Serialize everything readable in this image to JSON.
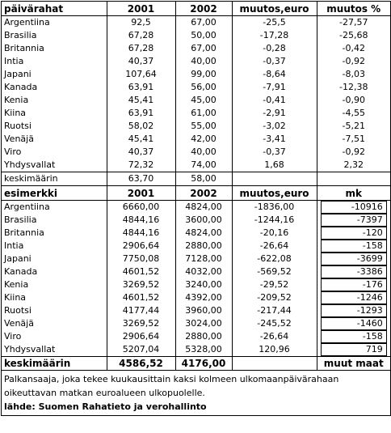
{
  "table1": {
    "header": [
      "päivärahat",
      "2001",
      "2002",
      "muutos,euro",
      "muutos %"
    ],
    "rows": [
      [
        "Argentiina",
        "92,5",
        "67,00",
        "-25,5",
        "-27,57"
      ],
      [
        "Brasilia",
        "67,28",
        "50,00",
        "-17,28",
        "-25,68"
      ],
      [
        "Britannia",
        "67,28",
        "67,00",
        "-0,28",
        "-0,42"
      ],
      [
        "Intia",
        "40,37",
        "40,00",
        "-0,37",
        "-0,92"
      ],
      [
        "Japani",
        "107,64",
        "99,00",
        "-8,64",
        "-8,03"
      ],
      [
        "Kanada",
        "63,91",
        "56,00",
        "-7,91",
        "-12,38"
      ],
      [
        "Kenia",
        "45,41",
        "45,00",
        "-0,41",
        "-0,90"
      ],
      [
        "Kiina",
        "63,91",
        "61,00",
        "-2,91",
        "-4,55"
      ],
      [
        "Ruotsi",
        "58,02",
        "55,00",
        "-3,02",
        "-5,21"
      ],
      [
        "Venäjä",
        "45,41",
        "42,00",
        "-3,41",
        "-7,51"
      ],
      [
        "Viro",
        "40,37",
        "40,00",
        "-0,37",
        "-0,92"
      ],
      [
        "Yhdysvallat",
        "72,32",
        "74,00",
        "1,68",
        "2,32"
      ]
    ],
    "average": [
      "keskimäärin",
      "63,70",
      "58,00"
    ]
  },
  "table2": {
    "header": [
      "esimerkki",
      "2001",
      "2002",
      "muutos,euro",
      "mk"
    ],
    "rows": [
      [
        "Argentiina",
        "6660,00",
        "4824,00",
        "-1836,00",
        "-10916"
      ],
      [
        "Brasilia",
        "4844,16",
        "3600,00",
        "-1244,16",
        "-7397"
      ],
      [
        "Britannia",
        "4844,16",
        "4824,00",
        "-20,16",
        "-120"
      ],
      [
        "Intia",
        "2906,64",
        "2880,00",
        "-26,64",
        "-158"
      ],
      [
        "Japani",
        "7750,08",
        "7128,00",
        "-622,08",
        "-3699"
      ],
      [
        "Kanada",
        "4601,52",
        "4032,00",
        "-569,52",
        "-3386"
      ],
      [
        "Kenia",
        "3269,52",
        "3240,00",
        "-29,52",
        "-176"
      ],
      [
        "Kiina",
        "4601,52",
        "4392,00",
        "-209,52",
        "-1246"
      ],
      [
        "Ruotsi",
        "4177,44",
        "3960,00",
        "-217,44",
        "-1293"
      ],
      [
        "Venäjä",
        "3269,52",
        "3024,00",
        "-245,52",
        "-1460"
      ],
      [
        "Viro",
        "2906,64",
        "2880,00",
        "-26,64",
        "-158"
      ],
      [
        "Yhdysvallat",
        "5207,04",
        "5328,00",
        "120,96",
        "719"
      ]
    ],
    "footer": [
      "keskimäärin",
      "4586,52",
      "4176,00",
      "muut maat"
    ]
  },
  "note": "Palkansaaja, joka tekee kuukausittain kaksi kolmeen ulkomaanpäivärahaan oikeuttavan matkan euroalueen ulkopuolelle.",
  "source": "lähde: Suomen Rahatieto ja verohallinto"
}
